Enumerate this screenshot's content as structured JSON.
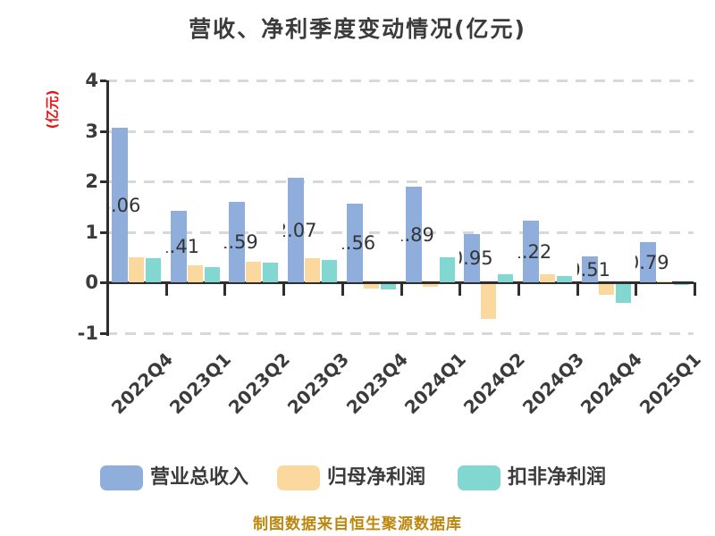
{
  "title": "营收、净利季度变动情况(亿元)",
  "footer": "制图数据来自恒生聚源数据库",
  "y_axis": {
    "label": "(亿元)",
    "label_color": "#ee1111",
    "ticks": [
      "4",
      "3",
      "2",
      "1",
      "0",
      "-1"
    ]
  },
  "chart_data": {
    "type": "bar",
    "title": "营收、净利季度变动情况(亿元)",
    "ylabel": "(亿元)",
    "xlabel": "",
    "categories": [
      "2022Q4",
      "2023Q1",
      "2023Q2",
      "2023Q3",
      "2023Q4",
      "2024Q1",
      "2024Q2",
      "2024Q3",
      "2024Q4",
      "2025Q1"
    ],
    "series": [
      {
        "name": "营业总收入",
        "color": "#8FAEDC",
        "values": [
          3.06,
          1.41,
          1.59,
          2.07,
          1.56,
          1.89,
          0.95,
          1.22,
          0.51,
          0.79
        ],
        "bar_labels": [
          "3.06",
          "1.41",
          "1.59",
          "2.07",
          "1.56",
          "1.89",
          "0.95",
          "1.22",
          "0.51",
          "0.79"
        ]
      },
      {
        "name": "归母净利润",
        "color": "#FBD99E",
        "values": [
          0.49,
          0.34,
          0.41,
          0.47,
          -0.08,
          -0.05,
          -0.69,
          0.16,
          -0.21,
          0.01
        ]
      },
      {
        "name": "扣非净利润",
        "color": "#82D8D0",
        "values": [
          0.47,
          0.3,
          0.39,
          0.44,
          -0.1,
          0.5,
          0.16,
          0.12,
          -0.37,
          -0.02
        ]
      }
    ],
    "ylim": [
      -1,
      4
    ],
    "yticks": [
      4,
      3,
      2,
      1,
      0,
      -1
    ],
    "grid": "horizontal-dashed",
    "legend_position": "bottom",
    "footer": "制图数据来自恒生聚源数据库"
  }
}
